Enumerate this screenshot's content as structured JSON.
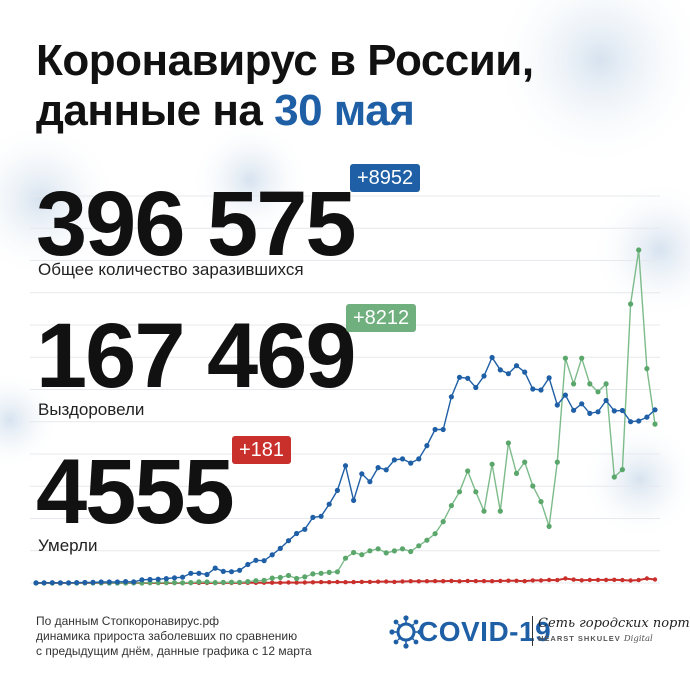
{
  "header": {
    "title_line1": "Коронавирус в России,",
    "title_line2_prefix": "данные на ",
    "title_date": "30 мая"
  },
  "stats": {
    "total": {
      "value": "396 575",
      "delta": "+8952",
      "label": "Общее количество заразившихся",
      "color": "#1f5fa6"
    },
    "recovered": {
      "value": "167 469",
      "delta": "+8212",
      "label": "Выздоровели",
      "color": "#5aa66b"
    },
    "deaths": {
      "value": "4555",
      "delta": "+181",
      "label": "Умерли",
      "color": "#c9302c"
    }
  },
  "footer": {
    "line1": "По данным Стопкоронавирус.рф",
    "line2": "динамика прироста заболевших по сравнению",
    "line3": "с предыдущим днём, данные графика с 12 марта"
  },
  "logo": {
    "brand": "COVID-19",
    "partner": "Сеть городских порталов",
    "partner_caps": "HEARST SHKULEV",
    "partner_digital": "Digital",
    "icon": "virus-icon"
  },
  "chart_data": {
    "type": "line",
    "x_start": "12 марта",
    "series": [
      {
        "key": "new_cases",
        "color": "#1f5fa6",
        "values": [
          6,
          8,
          14,
          10,
          12,
          22,
          27,
          33,
          52,
          54,
          53,
          71,
          57,
          163,
          182,
          196,
          228,
          270,
          302,
          500,
          501,
          440,
          771,
          601,
          582,
          658,
          954,
          1175,
          1154,
          1459,
          1786,
          2186,
          2558,
          2774,
          3388,
          3448,
          4070,
          4785,
          6060,
          4268,
          5642,
          5236,
          5966,
          5849,
          6361,
          6411,
          6198,
          6411,
          7099,
          7933,
          7933,
          9623,
          10633,
          10581,
          10102,
          10699,
          11656,
          11012,
          10817,
          11231,
          10899,
          10028,
          9974,
          10598,
          9200,
          9709,
          8926,
          9263,
          8764,
          8849,
          9434,
          8894,
          8915,
          8338,
          8371,
          8572,
          8952
        ]
      },
      {
        "key": "new_recovered",
        "color": "#5aa66b",
        "values": [
          0,
          0,
          0,
          0,
          0,
          2,
          3,
          3,
          5,
          0,
          0,
          1,
          4,
          1,
          13,
          21,
          22,
          13,
          9,
          19,
          55,
          50,
          21,
          35,
          42,
          37,
          70,
          120,
          136,
          252,
          282,
          386,
          234,
          313,
          472,
          502,
          550,
          578,
          1282,
          1577,
          1461,
          1665,
          1770,
          1558,
          1661,
          1770,
          1626,
          1921,
          2212,
          2546,
          3174,
          4000,
          4712,
          5786,
          4712,
          3711,
          6141,
          3714,
          7234,
          5662,
          6250,
          5012,
          4205,
          2925,
          6250,
          11619,
          10289,
          11619,
          10287,
          9879,
          10289,
          5476,
          5862,
          14417,
          17209,
          11079,
          8212
        ]
      },
      {
        "key": "new_deaths",
        "color": "#c9302c",
        "values": [
          0,
          0,
          0,
          0,
          0,
          0,
          0,
          1,
          0,
          0,
          0,
          0,
          1,
          0,
          1,
          1,
          1,
          1,
          1,
          4,
          3,
          2,
          4,
          4,
          4,
          6,
          9,
          9,
          13,
          18,
          13,
          28,
          22,
          24,
          36,
          48,
          41,
          51,
          42,
          47,
          58,
          57,
          66,
          72,
          58,
          76,
          95,
          88,
          91,
          98,
          94,
          108,
          86,
          107,
          96,
          96,
          91,
          107,
          119,
          113,
          94,
          135,
          135,
          153,
          150,
          232,
          174,
          139,
          153,
          161,
          162,
          164,
          148,
          129,
          150,
          232,
          181
        ]
      }
    ],
    "ylim": [
      0,
      20000
    ],
    "grid": true,
    "grid_lines": 12
  }
}
